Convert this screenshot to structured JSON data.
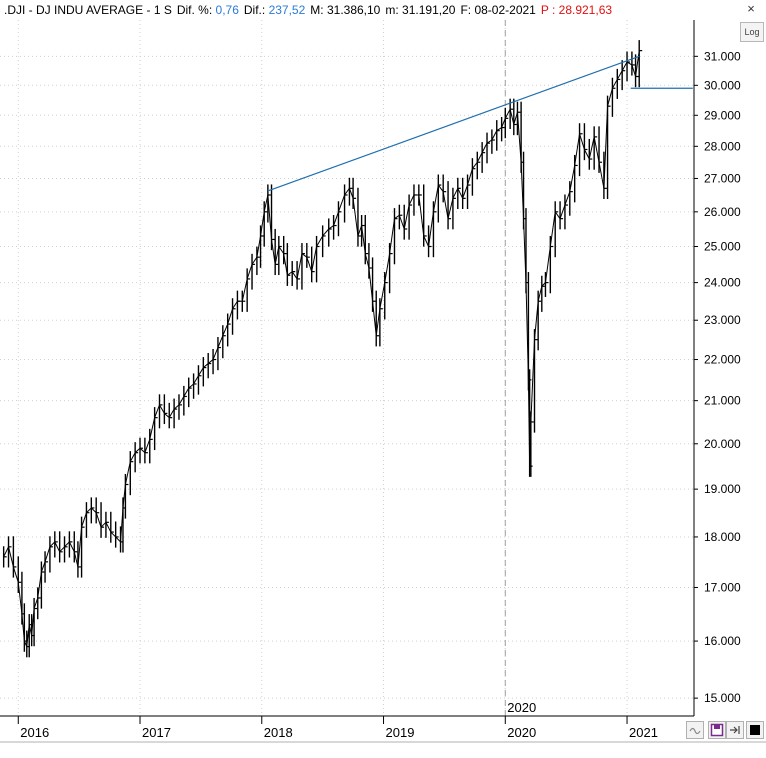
{
  "header": {
    "symbol": ".DJI",
    "sep1": " - ",
    "name": "DJ INDU AVERAGE",
    "sep2": " - ",
    "period": "1 S",
    "dif_pct_label": "Dif. %:",
    "dif_pct_value": "0,76",
    "dif_label": "Dif.:",
    "dif_value": "237,52",
    "max_label": "M:",
    "max_value": "31.386,10",
    "min_label": "m:",
    "min_value": "31.191,20",
    "date_label": "F:",
    "date_value": "08-02-2021",
    "price_label": "P :",
    "price_value": "28.921,63",
    "close_icon": "×"
  },
  "colors": {
    "accent_blue": "#2b7bd6",
    "price_red": "#e01010",
    "trendline": "#1f6fb0",
    "bars": "#000000",
    "grid": "#d0d0d0"
  },
  "toolbar": {
    "log_label": "Log",
    "icons": [
      "refresh-icon",
      "save-icon",
      "export-icon",
      "color-square-icon"
    ]
  },
  "chart_data": {
    "type": "bar",
    "subtype": "ohlc",
    "title": "",
    "xlabel": "",
    "ylabel": "",
    "x_ticks": [
      "2016",
      "2017",
      "2018",
      "2019",
      "2020",
      "2021"
    ],
    "cursor_label": "2020",
    "y_ticks": [
      "31.000",
      "30.000",
      "29.000",
      "28.000",
      "27.000",
      "26.000",
      "25.000",
      "24.000",
      "23.000",
      "22.000",
      "21.000",
      "20.000",
      "19.000",
      "18.000",
      "17.000",
      "16.000",
      "15.000"
    ],
    "ylim": [
      14700,
      32300
    ],
    "scale": "log",
    "grid": true,
    "xlim": [
      2015.85,
      2021.55
    ],
    "series": [
      {
        "values": [
          [
            2015.88,
            17600
          ],
          [
            2015.92,
            17800
          ],
          [
            2015.96,
            17400
          ],
          [
            2016.0,
            17100
          ],
          [
            2016.03,
            16500
          ],
          [
            2016.05,
            16000
          ],
          [
            2016.07,
            15900
          ],
          [
            2016.09,
            16300
          ],
          [
            2016.11,
            16100
          ],
          [
            2016.13,
            16600
          ],
          [
            2016.16,
            16800
          ],
          [
            2016.19,
            17300
          ],
          [
            2016.22,
            17500
          ],
          [
            2016.26,
            17800
          ],
          [
            2016.3,
            17900
          ],
          [
            2016.34,
            17700
          ],
          [
            2016.38,
            17800
          ],
          [
            2016.42,
            17900
          ],
          [
            2016.46,
            17700
          ],
          [
            2016.49,
            17400
          ],
          [
            2016.52,
            18200
          ],
          [
            2016.56,
            18500
          ],
          [
            2016.6,
            18600
          ],
          [
            2016.64,
            18500
          ],
          [
            2016.68,
            18200
          ],
          [
            2016.72,
            18300
          ],
          [
            2016.76,
            18100
          ],
          [
            2016.8,
            18000
          ],
          [
            2016.84,
            17900
          ],
          [
            2016.86,
            18600
          ],
          [
            2016.88,
            19100
          ],
          [
            2016.92,
            19600
          ],
          [
            2016.96,
            19800
          ],
          [
            2017.0,
            19900
          ],
          [
            2017.04,
            19800
          ],
          [
            2017.08,
            20100
          ],
          [
            2017.12,
            20600
          ],
          [
            2017.16,
            20900
          ],
          [
            2017.2,
            20700
          ],
          [
            2017.24,
            20600
          ],
          [
            2017.28,
            20800
          ],
          [
            2017.32,
            20900
          ],
          [
            2017.36,
            21100
          ],
          [
            2017.4,
            21300
          ],
          [
            2017.44,
            21400
          ],
          [
            2017.48,
            21600
          ],
          [
            2017.52,
            21800
          ],
          [
            2017.56,
            21900
          ],
          [
            2017.6,
            22000
          ],
          [
            2017.64,
            22300
          ],
          [
            2017.68,
            22600
          ],
          [
            2017.72,
            22900
          ],
          [
            2017.76,
            23300
          ],
          [
            2017.8,
            23500
          ],
          [
            2017.84,
            23500
          ],
          [
            2017.88,
            24100
          ],
          [
            2017.92,
            24500
          ],
          [
            2017.96,
            24700
          ],
          [
            2017.99,
            25300
          ],
          [
            2018.02,
            26000
          ],
          [
            2018.05,
            26500
          ],
          [
            2018.08,
            25200
          ],
          [
            2018.11,
            24500
          ],
          [
            2018.14,
            25000
          ],
          [
            2018.18,
            24800
          ],
          [
            2018.21,
            24200
          ],
          [
            2018.25,
            24300
          ],
          [
            2018.29,
            24100
          ],
          [
            2018.33,
            24800
          ],
          [
            2018.37,
            24700
          ],
          [
            2018.41,
            24300
          ],
          [
            2018.45,
            25000
          ],
          [
            2018.5,
            25300
          ],
          [
            2018.55,
            25500
          ],
          [
            2018.59,
            25600
          ],
          [
            2018.63,
            26000
          ],
          [
            2018.68,
            26500
          ],
          [
            2018.72,
            26700
          ],
          [
            2018.75,
            26400
          ],
          [
            2018.79,
            25300
          ],
          [
            2018.82,
            25600
          ],
          [
            2018.85,
            24800
          ],
          [
            2018.88,
            24400
          ],
          [
            2018.91,
            23500
          ],
          [
            2018.94,
            22600
          ],
          [
            2018.97,
            23300
          ],
          [
            2019.01,
            24000
          ],
          [
            2019.05,
            24800
          ],
          [
            2019.09,
            25800
          ],
          [
            2019.13,
            25900
          ],
          [
            2019.17,
            25500
          ],
          [
            2019.21,
            26200
          ],
          [
            2019.25,
            26500
          ],
          [
            2019.29,
            26500
          ],
          [
            2019.33,
            25300
          ],
          [
            2019.37,
            25000
          ],
          [
            2019.41,
            26000
          ],
          [
            2019.45,
            26800
          ],
          [
            2019.49,
            26600
          ],
          [
            2019.53,
            25800
          ],
          [
            2019.57,
            26400
          ],
          [
            2019.61,
            26700
          ],
          [
            2019.65,
            26400
          ],
          [
            2019.69,
            26800
          ],
          [
            2019.73,
            27300
          ],
          [
            2019.77,
            27500
          ],
          [
            2019.81,
            27800
          ],
          [
            2019.85,
            28100
          ],
          [
            2019.89,
            28200
          ],
          [
            2019.93,
            28500
          ],
          [
            2019.97,
            28600
          ],
          [
            2020.0,
            28900
          ],
          [
            2020.04,
            29200
          ],
          [
            2020.07,
            28700
          ],
          [
            2020.1,
            29100
          ],
          [
            2020.13,
            27500
          ],
          [
            2020.15,
            25800
          ],
          [
            2020.17,
            24000
          ],
          [
            2020.19,
            21500
          ],
          [
            2020.2,
            19500
          ],
          [
            2020.21,
            20500
          ],
          [
            2020.24,
            22500
          ],
          [
            2020.27,
            23500
          ],
          [
            2020.3,
            23900
          ],
          [
            2020.33,
            24000
          ],
          [
            2020.37,
            25000
          ],
          [
            2020.41,
            26000
          ],
          [
            2020.45,
            25800
          ],
          [
            2020.49,
            26200
          ],
          [
            2020.53,
            26600
          ],
          [
            2020.57,
            27400
          ],
          [
            2020.61,
            28400
          ],
          [
            2020.65,
            27900
          ],
          [
            2020.69,
            27600
          ],
          [
            2020.73,
            28300
          ],
          [
            2020.77,
            27500
          ],
          [
            2020.81,
            26700
          ],
          [
            2020.84,
            29300
          ],
          [
            2020.88,
            29900
          ],
          [
            2020.92,
            30200
          ],
          [
            2020.96,
            30500
          ],
          [
            2021.0,
            30800
          ],
          [
            2021.04,
            30700
          ],
          [
            2021.07,
            30300
          ],
          [
            2021.1,
            31200
          ]
        ]
      }
    ],
    "trendline": [
      [
        2018.05,
        26620
      ],
      [
        2021.1,
        31000
      ]
    ],
    "support_line": [
      [
        2021.03,
        29900
      ],
      [
        2021.54,
        29900
      ]
    ]
  }
}
